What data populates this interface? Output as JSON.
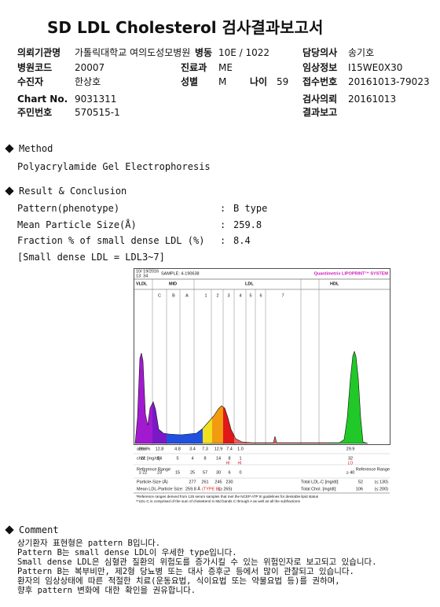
{
  "header": {
    "title": "SD LDL Cholesterol 검사결과보고서"
  },
  "info": {
    "rows": [
      [
        "의뢰기관명",
        "가톨릭대학교 여의도성모병원",
        "병동",
        "10E / 1022",
        "담당의사",
        "송기호"
      ],
      [
        "병원코드",
        "20007",
        "진료과",
        "ME",
        "임상정보",
        "I15WE0X30"
      ],
      [
        "수진자",
        "한상호",
        "성별",
        "M",
        "나이",
        "59",
        "접수번호",
        "20161013-79023"
      ],
      [
        "Chart No.",
        "9031311",
        "검사의뢰",
        "20161013"
      ],
      [
        "주민번호",
        "570515-1",
        "결과보고"
      ]
    ]
  },
  "method": {
    "heading": "Method",
    "text": "Polyacrylamide Gel Electrophoresis"
  },
  "result": {
    "heading": "Result & Conclusion",
    "rows": [
      [
        "Pattern(phenotype)",
        ":",
        "B type"
      ],
      [
        "Mean Particle Size(Å)",
        ":",
        "259.8"
      ],
      [
        "Fraction % of small dense LDL (%)",
        ":",
        "8.4"
      ]
    ],
    "note": "[Small dense LDL = LDL3~7]"
  },
  "electrophoresis": {
    "date": "10/ 19/2016",
    "time": "13: 34",
    "sample": "SAMPLE:   4-190638",
    "brand": "Quantimetrix LIPOPRINT™ SYSTEM",
    "bands": [
      "VLDL",
      "MID",
      "LDL",
      "HDL"
    ],
    "subbands": [
      "C",
      "B",
      "A",
      "1",
      "2",
      "3",
      "4",
      "5",
      "6",
      "7"
    ],
    "area_label": "area %",
    "area": [
      "20.6",
      "12.8",
      "4.8",
      "3.4",
      "7.3",
      "12.9",
      "7.4",
      "1.0",
      "29.9"
    ],
    "chol_label": "chol. [mg/dl]",
    "chol": [
      "22",
      "14",
      "5",
      "4",
      "8",
      "14",
      "8",
      "1",
      "32"
    ],
    "chol_flags": [
      "HI",
      "HI",
      "LO"
    ],
    "reference_label": "Reference Range",
    "reference": [
      "≥ 22",
      "23",
      "15",
      "25",
      "57",
      "30",
      "6",
      "0",
      "≥ 40"
    ],
    "particle_label": "Particle-Size (Å)",
    "particle": [
      "277",
      "261",
      "245",
      "230"
    ],
    "mean_label": "Mean LDL-Particle Size:",
    "mean_value": "259.8 Å",
    "mean_type": "(TYPE B)",
    "mean_reference": "(≥ 265)",
    "total_ldl_label": "Total LDL-C [mg/dl]:",
    "total_ldl": "52",
    "total_ldl_reference": "(≤ 130)",
    "total_chol_label": "Total Chol. [mg/dl]:",
    "total_chol": "106",
    "total_chol_reference": "(≤ 200)",
    "footnotes": [
      "*Reference ranges derived from 125 serum samples that met the NCEP ATP III guidelines for desirable lipid status",
      "**LDL-C is comprised of the sum of cholesterol in Mid bands C through A as well as all the subfractions"
    ]
  },
  "comment": {
    "heading": "Comment",
    "lines": [
      "상기환자 표현형은 pattern B입니다.",
      "Pattern B는 small dense LDL이 우세한 type입니다.",
      "Small dense LDL은 심혈관 질환의 위험도를 증가시킬 수 있는 위험인자로 보고되고 있습니다.",
      "Pattern B는 복부비만, 제2형 당뇨병 또는 대사 증후군 등에서 많이 관찰되고 있습니다.",
      "환자의 임상상태에 따른 적절한 치료(운동요법, 식이요법 또는 약물요법 등)를 권하며,",
      "향후 pattern 변화에 대한 확인을 권유합니다."
    ]
  }
}
